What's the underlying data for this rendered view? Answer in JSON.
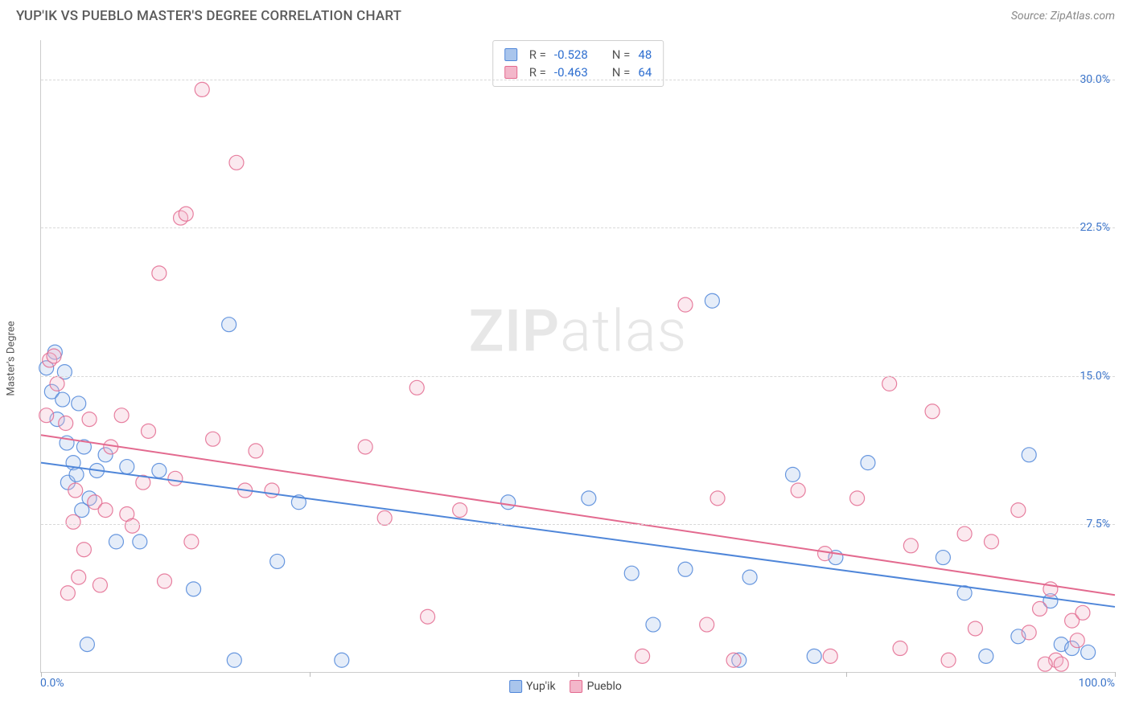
{
  "header": {
    "title": "YUP'IK VS PUEBLO MASTER'S DEGREE CORRELATION CHART",
    "source": "Source: ZipAtlas.com"
  },
  "watermark": {
    "bold": "ZIP",
    "light": "atlas"
  },
  "chart": {
    "type": "scatter",
    "background_color": "#ffffff",
    "grid_color": "#d8d8d8",
    "axis_color": "#cccccc",
    "tick_label_color": "#3b74c9",
    "tick_label_fontsize": 14,
    "y_axis_title": "Master's Degree",
    "y_axis_title_fontsize": 13,
    "xlim": [
      0,
      100
    ],
    "ylim": [
      0,
      32
    ],
    "y_ticks": [
      7.5,
      15.0,
      22.5,
      30.0
    ],
    "y_tick_labels": [
      "7.5%",
      "15.0%",
      "22.5%",
      "30.0%"
    ],
    "x_tick_positions": [
      0,
      25,
      50,
      75,
      100
    ],
    "x_min_label": "0.0%",
    "x_max_label": "100.0%",
    "point_radius": 9,
    "point_fill_opacity": 0.3,
    "point_stroke_opacity": 0.85,
    "line_width": 2,
    "series": [
      {
        "name": "Yup'ik",
        "color": "#4f86d9",
        "fill": "#a9c5ec",
        "R": "-0.528",
        "N": "48",
        "regression": {
          "x1": 0,
          "y1": 10.6,
          "x2": 100,
          "y2": 3.3
        },
        "points": [
          [
            0.5,
            15.4
          ],
          [
            1.0,
            14.2
          ],
          [
            1.3,
            16.2
          ],
          [
            1.5,
            12.8
          ],
          [
            2.0,
            13.8
          ],
          [
            2.2,
            15.2
          ],
          [
            2.4,
            11.6
          ],
          [
            2.5,
            9.6
          ],
          [
            3.0,
            10.6
          ],
          [
            3.3,
            10.0
          ],
          [
            3.5,
            13.6
          ],
          [
            3.8,
            8.2
          ],
          [
            4.0,
            11.4
          ],
          [
            4.3,
            1.4
          ],
          [
            4.5,
            8.8
          ],
          [
            5.2,
            10.2
          ],
          [
            6.0,
            11.0
          ],
          [
            7.0,
            6.6
          ],
          [
            8.0,
            10.4
          ],
          [
            9.2,
            6.6
          ],
          [
            11.0,
            10.2
          ],
          [
            14.2,
            4.2
          ],
          [
            17.5,
            17.6
          ],
          [
            18.0,
            0.6
          ],
          [
            22.0,
            5.6
          ],
          [
            24.0,
            8.6
          ],
          [
            28.0,
            0.6
          ],
          [
            43.5,
            8.6
          ],
          [
            51.0,
            8.8
          ],
          [
            55.0,
            5.0
          ],
          [
            57.0,
            2.4
          ],
          [
            60.0,
            5.2
          ],
          [
            62.5,
            18.8
          ],
          [
            65.0,
            0.6
          ],
          [
            66.0,
            4.8
          ],
          [
            70.0,
            10.0
          ],
          [
            72.0,
            0.8
          ],
          [
            74.0,
            5.8
          ],
          [
            77.0,
            10.6
          ],
          [
            84.0,
            5.8
          ],
          [
            86.0,
            4.0
          ],
          [
            88.0,
            0.8
          ],
          [
            91.0,
            1.8
          ],
          [
            92.0,
            11.0
          ],
          [
            94.0,
            3.6
          ],
          [
            95.0,
            1.4
          ],
          [
            96.0,
            1.2
          ],
          [
            97.5,
            1.0
          ]
        ]
      },
      {
        "name": "Pueblo",
        "color": "#e36a8f",
        "fill": "#f3b7ca",
        "R": "-0.463",
        "N": "64",
        "regression": {
          "x1": 0,
          "y1": 12.0,
          "x2": 100,
          "y2": 3.9
        },
        "points": [
          [
            0.5,
            13.0
          ],
          [
            0.8,
            15.8
          ],
          [
            1.2,
            16.0
          ],
          [
            1.5,
            14.6
          ],
          [
            2.3,
            12.6
          ],
          [
            2.5,
            4.0
          ],
          [
            3.0,
            7.6
          ],
          [
            3.2,
            9.2
          ],
          [
            3.5,
            4.8
          ],
          [
            4.0,
            6.2
          ],
          [
            4.5,
            12.8
          ],
          [
            5.0,
            8.6
          ],
          [
            5.5,
            4.4
          ],
          [
            6.0,
            8.2
          ],
          [
            6.5,
            11.4
          ],
          [
            7.5,
            13.0
          ],
          [
            8.0,
            8.0
          ],
          [
            8.5,
            7.4
          ],
          [
            9.5,
            9.6
          ],
          [
            10.0,
            12.2
          ],
          [
            11.0,
            20.2
          ],
          [
            11.5,
            4.6
          ],
          [
            12.5,
            9.8
          ],
          [
            13.0,
            23.0
          ],
          [
            13.5,
            23.2
          ],
          [
            14.0,
            6.6
          ],
          [
            15.0,
            29.5
          ],
          [
            16.0,
            11.8
          ],
          [
            18.2,
            25.8
          ],
          [
            19.0,
            9.2
          ],
          [
            20.0,
            11.2
          ],
          [
            21.5,
            9.2
          ],
          [
            30.2,
            11.4
          ],
          [
            32.0,
            7.8
          ],
          [
            35.0,
            14.4
          ],
          [
            36.0,
            2.8
          ],
          [
            39.0,
            8.2
          ],
          [
            56.0,
            0.8
          ],
          [
            60.0,
            18.6
          ],
          [
            62.0,
            2.4
          ],
          [
            63.0,
            8.8
          ],
          [
            64.5,
            0.6
          ],
          [
            70.5,
            9.2
          ],
          [
            73.0,
            6.0
          ],
          [
            73.5,
            0.8
          ],
          [
            76.0,
            8.8
          ],
          [
            79.0,
            14.6
          ],
          [
            80.0,
            1.2
          ],
          [
            81.0,
            6.4
          ],
          [
            83.0,
            13.2
          ],
          [
            84.5,
            0.6
          ],
          [
            86.0,
            7.0
          ],
          [
            87.0,
            2.2
          ],
          [
            88.5,
            6.6
          ],
          [
            91.0,
            8.2
          ],
          [
            92.0,
            2.0
          ],
          [
            93.0,
            3.2
          ],
          [
            94.0,
            4.2
          ],
          [
            94.5,
            0.6
          ],
          [
            95.0,
            0.4
          ],
          [
            96.0,
            2.6
          ],
          [
            96.5,
            1.6
          ],
          [
            93.5,
            0.4
          ],
          [
            97.0,
            3.0
          ]
        ]
      }
    ],
    "bottom_legend": [
      {
        "label": "Yup'ik",
        "fill": "#a9c5ec",
        "border": "#4f86d9"
      },
      {
        "label": "Pueblo",
        "fill": "#f3b7ca",
        "border": "#e36a8f"
      }
    ],
    "stats_box": {
      "border_color": "#cfcfcf",
      "r_label": "R =",
      "n_label": "N ="
    }
  }
}
